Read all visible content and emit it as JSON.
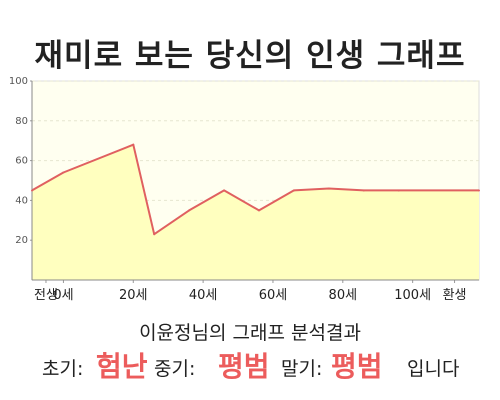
{
  "title": "재미로 보는 당신의 인생 그래프",
  "chart_data": {
    "type": "area",
    "x_labels": [
      {
        "x": -5,
        "label": "전생"
      },
      {
        "x": 0,
        "label": "0세"
      },
      {
        "x": 20,
        "label": "20세"
      },
      {
        "x": 40,
        "label": "40세"
      },
      {
        "x": 60,
        "label": "60세"
      },
      {
        "x": 80,
        "label": "80세"
      },
      {
        "x": 100,
        "label": "100세"
      },
      {
        "x": 112,
        "label": "환생"
      }
    ],
    "xlim": [
      -9,
      119
    ],
    "ylim": [
      0,
      100
    ],
    "yticks": [
      20,
      40,
      60,
      80,
      100
    ],
    "x": [
      -9,
      0,
      20,
      26,
      36,
      46,
      56,
      66,
      76,
      86,
      96,
      119
    ],
    "y": [
      45,
      54,
      68,
      23,
      35,
      45,
      35,
      45,
      46,
      45,
      45,
      45
    ],
    "grid": true,
    "line_color": "#e06060",
    "fill_color": "#ffffbf",
    "plot_bg": "#fffff0"
  },
  "summary": "이윤정님의 그래프 분석결과",
  "verdict": {
    "early_label": "초기:",
    "early_value": "험난",
    "mid_label": "중기:",
    "mid_value": "평범",
    "late_label": "말기:",
    "late_value": "평범",
    "ending": "입니다"
  }
}
